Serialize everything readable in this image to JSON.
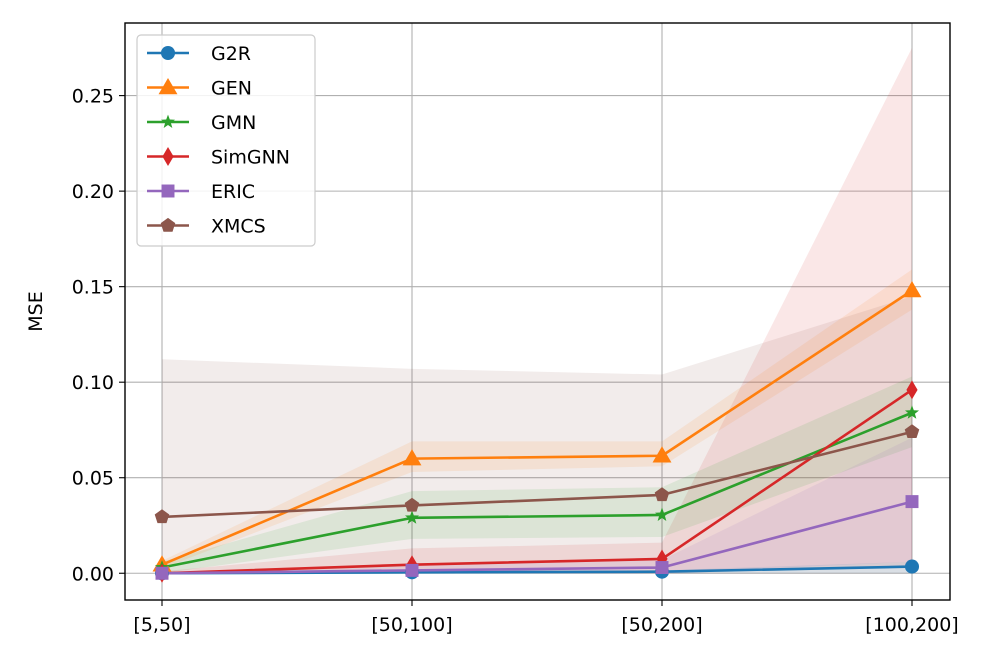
{
  "chart_data": {
    "type": "line",
    "title": "",
    "xlabel": "",
    "ylabel": "MSE",
    "categories": [
      "[5,50]",
      "[50,100]",
      "[50,200]",
      "[100,200]"
    ],
    "ylim": [
      -0.014,
      0.288
    ],
    "yticks": [
      0.0,
      0.05,
      0.1,
      0.15,
      0.2,
      0.25
    ],
    "ytick_labels": [
      "0.00",
      "0.05",
      "0.10",
      "0.15",
      "0.20",
      "0.25"
    ],
    "grid": true,
    "legend_position": "top-left",
    "series": [
      {
        "name": "G2R",
        "color": "#1f77b4",
        "marker": "circle",
        "values": [
          0.0,
          0.0005,
          0.0008,
          0.0035
        ],
        "band_lower": [
          0.0,
          0.0,
          0.0,
          0.0
        ],
        "band_upper": [
          0.0005,
          0.001,
          0.0015,
          0.006
        ]
      },
      {
        "name": "GEN",
        "color": "#ff7f0e",
        "marker": "triangle",
        "values": [
          0.0045,
          0.06,
          0.0615,
          0.148
        ],
        "band_lower": [
          0.0025,
          0.053,
          0.056,
          0.138
        ],
        "band_upper": [
          0.0065,
          0.069,
          0.069,
          0.159
        ]
      },
      {
        "name": "GMN",
        "color": "#2ca02c",
        "marker": "star",
        "values": [
          0.003,
          0.029,
          0.0305,
          0.084
        ],
        "band_lower": [
          0.0,
          0.018,
          0.019,
          0.066
        ],
        "band_upper": [
          0.006,
          0.043,
          0.045,
          0.103
        ]
      },
      {
        "name": "SimGNN",
        "color": "#d62728",
        "marker": "diamond",
        "values": [
          0.0,
          0.0045,
          0.0075,
          0.096
        ],
        "band_lower": [
          0.0,
          0.0,
          0.0,
          0.003
        ],
        "band_upper": [
          0.001,
          0.013,
          0.016,
          0.275
        ]
      },
      {
        "name": "ERIC",
        "color": "#9467bd",
        "marker": "square",
        "values": [
          0.0,
          0.0015,
          0.003,
          0.0375
        ],
        "band_lower": [
          0.0,
          0.0,
          0.0,
          0.006
        ],
        "band_upper": [
          0.0005,
          0.004,
          0.007,
          0.071
        ]
      },
      {
        "name": "XMCS",
        "color": "#8c564b",
        "marker": "pentagon",
        "values": [
          0.0295,
          0.0355,
          0.041,
          0.074
        ],
        "band_lower": [
          0.0,
          0.0,
          0.0,
          0.0
        ],
        "band_upper": [
          0.112,
          0.107,
          0.104,
          0.145
        ]
      }
    ]
  }
}
